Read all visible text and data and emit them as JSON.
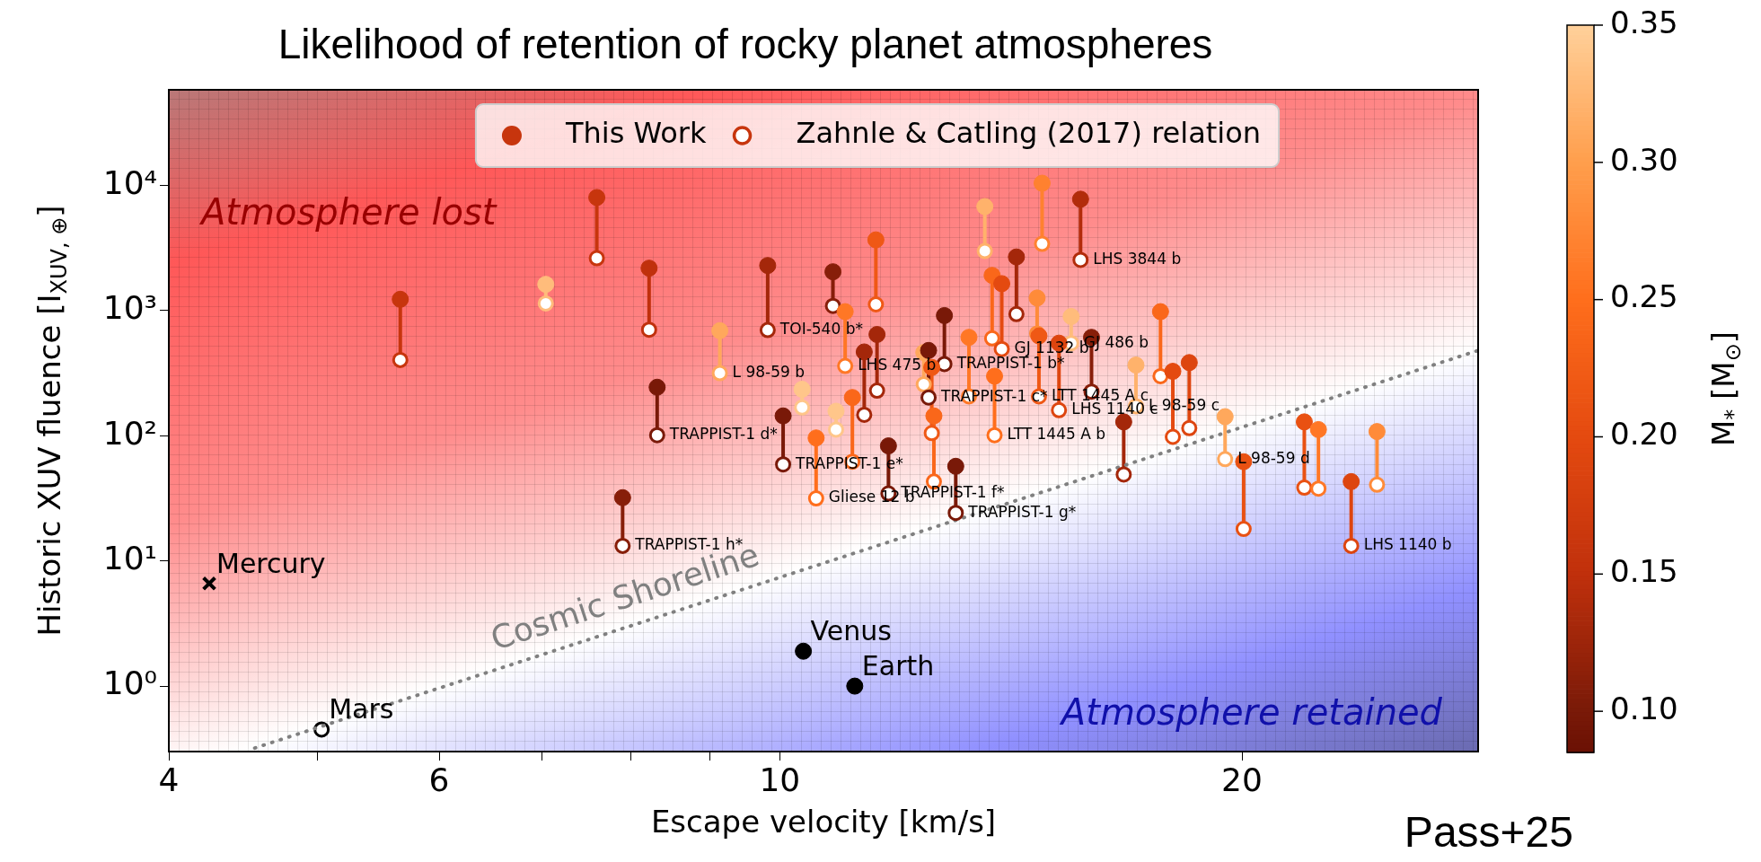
{
  "chart_data": {
    "type": "scatter",
    "title": "Likelihood of retention of rocky planet atmospheres",
    "xlabel": "Escape velocity [km/s]",
    "ylabel": "Historic XUV fluence [I$_{XUV, ⊕}$]",
    "clabel": "M$_{*}$ [M$_{⊙}$]",
    "x": [
      5.66,
      7.04,
      7.6,
      7.9,
      8.22,
      8.32,
      9.14,
      9.82,
      10.05,
      10.34,
      10.56,
      10.83,
      10.88,
      11.03,
      11.15,
      11.35,
      11.55,
      11.57,
      11.77,
      12.41,
      12.5,
      12.56,
      12.6,
      12.8,
      13.02,
      13.28,
      13.6,
      13.75,
      13.8,
      13.95,
      14.26,
      14.71,
      14.75,
      14.82,
      15.2,
      15.48,
      15.7,
      15.96,
      16.75,
      17.06,
      17.7,
      18.03,
      18.48,
      19.5,
      20.05,
      21.96,
      22.43,
      23.56,
      24.49
    ],
    "series": [
      {
        "name": "This Work",
        "marker": "circle",
        "cvalues": [
          0.16,
          0.33,
          0.16,
          0.11,
          0.15,
          0.1,
          0.31,
          0.13,
          0.1,
          0.34,
          0.25,
          0.11,
          0.34,
          0.26,
          0.24,
          0.13,
          0.22,
          0.13,
          0.1,
          0.31,
          0.1,
          0.22,
          0.24,
          0.1,
          0.1,
          0.26,
          0.32,
          0.24,
          0.25,
          0.2,
          0.13,
          0.28,
          0.22,
          0.27,
          0.19,
          0.33,
          0.14,
          0.11,
          0.13,
          0.32,
          0.24,
          0.2,
          0.19,
          0.31,
          0.21,
          0.21,
          0.26,
          0.19,
          0.28
        ],
        "values": [
          1230,
          1620,
          8000,
          32,
          2180,
          244,
          690,
          2290,
          144,
          235,
          96,
          2040,
          157,
          980,
          202,
          467,
          3670,
          644,
          83,
          462,
          480,
          351,
          144,
          912,
          57,
          611,
          6770,
          1910,
          299,
          1640,
          2680,
          1260,
          627,
          10400,
          549,
          896,
          7750,
          611,
          129,
          367,
          980,
          327,
          384,
          142,
          62,
          129,
          112,
          43,
          108
        ],
        "colors": [
          "#c7350d",
          "#ffbc7b",
          "#c7350d",
          "#871e09",
          "#c0300c",
          "#791908",
          "#ffa85c",
          "#a4270a",
          "#791908",
          "#ffc68a",
          "#ff6e1c",
          "#871e09",
          "#ffc68a",
          "#ff7725",
          "#fa671a",
          "#a4270a",
          "#ef5815",
          "#a4270a",
          "#791908",
          "#ffa85c",
          "#791908",
          "#ef5815",
          "#fa671a",
          "#791908",
          "#791908",
          "#ff7725",
          "#ffb26b",
          "#fa671a",
          "#ff6e1c",
          "#e44a10",
          "#a4270a",
          "#ff8b39",
          "#ef5815",
          "#ff812f",
          "#dd450f",
          "#ffbc7b",
          "#b22c0b",
          "#871e09",
          "#a4270a",
          "#ffb26b",
          "#fa671a",
          "#e44a10",
          "#dd450f",
          "#ffa85c",
          "#e95112",
          "#e95112",
          "#ff7725",
          "#dd450f",
          "#ff8b39"
        ]
      },
      {
        "name": "Zahnle & Catling (2017) relation",
        "marker": "circle",
        "color": "#ffffff",
        "values": [
          403,
          1140,
          2620,
          13.2,
          703,
          101,
          316,
          698,
          59,
          168,
          31.6,
          1090,
          112,
          361,
          62,
          147,
          1120,
          229,
          34.6,
          257,
          202,
          105,
          43,
          374,
          24.2,
          206,
          2990,
          600,
          101,
          493,
          936,
          655,
          206,
          3410,
          160,
          549,
          2540,
          225,
          49,
          172,
          299,
          98,
          115,
          65,
          18,
          38.5,
          37.8,
          13.2,
          40.6
        ]
      },
      {
        "type": "line",
        "name": "Cosmic Shoreline",
        "marker": "none",
        "x": [
          4.55,
          28.5
        ],
        "values": [
          0.32,
          480
        ],
        "color": "#808080",
        "line_style": "dotted"
      },
      {
        "name": "Mercury",
        "x": [
          4.25
        ],
        "values": [
          6.6
        ],
        "color": "#000000",
        "marker": "cross"
      },
      {
        "name": "Venus",
        "marker": "circle",
        "x": [
          10.36
        ],
        "values": [
          1.9
        ],
        "color": "#000000"
      },
      {
        "name": "Earth",
        "marker": "circle",
        "x": [
          11.19
        ],
        "values": [
          1
        ],
        "color": "#000000"
      },
      {
        "name": "Mars",
        "marker": "circle",
        "x": [
          5.03
        ],
        "values": [
          0.45
        ],
        "color": "#ffffff"
      },
      {
        "type": "line",
        "marker": "none",
        "x": [
          5.66,
          5.66
        ],
        "values": [
          403,
          1230
        ],
        "color": "#c7350d"
      },
      {
        "type": "line",
        "marker": "none",
        "x": [
          7.04,
          7.04
        ],
        "values": [
          1140,
          1620
        ],
        "color": "#ffbc7b"
      },
      {
        "type": "line",
        "marker": "none",
        "x": [
          7.6,
          7.6
        ],
        "values": [
          2620,
          8000
        ],
        "color": "#c7350d"
      },
      {
        "type": "line",
        "marker": "none",
        "x": [
          7.9,
          7.9
        ],
        "values": [
          13.2,
          32
        ],
        "color": "#871e09"
      },
      {
        "type": "line",
        "marker": "none",
        "x": [
          8.22,
          8.22
        ],
        "values": [
          703,
          2180
        ],
        "color": "#c0300c"
      },
      {
        "type": "line",
        "marker": "none",
        "x": [
          8.32,
          8.32
        ],
        "values": [
          101,
          244
        ],
        "color": "#791908"
      },
      {
        "type": "line",
        "marker": "none",
        "x": [
          9.14,
          9.14
        ],
        "values": [
          316,
          690
        ],
        "color": "#ffa85c"
      },
      {
        "type": "line",
        "marker": "none",
        "x": [
          9.82,
          9.82
        ],
        "values": [
          698,
          2290
        ],
        "color": "#a4270a"
      },
      {
        "type": "line",
        "marker": "none",
        "x": [
          10.05,
          10.05
        ],
        "values": [
          59,
          144
        ],
        "color": "#791908"
      },
      {
        "type": "line",
        "marker": "none",
        "x": [
          10.34,
          10.34
        ],
        "values": [
          168,
          235
        ],
        "color": "#ffc68a"
      },
      {
        "type": "line",
        "marker": "none",
        "x": [
          10.56,
          10.56
        ],
        "values": [
          31.6,
          96
        ],
        "color": "#ff6e1c"
      },
      {
        "type": "line",
        "marker": "none",
        "x": [
          10.83,
          10.83
        ],
        "values": [
          1090,
          2040
        ],
        "color": "#871e09"
      },
      {
        "type": "line",
        "marker": "none",
        "x": [
          10.88,
          10.88
        ],
        "values": [
          112,
          157
        ],
        "color": "#ffc68a"
      },
      {
        "type": "line",
        "marker": "none",
        "x": [
          11.03,
          11.03
        ],
        "values": [
          361,
          980
        ],
        "color": "#ff7725"
      },
      {
        "type": "line",
        "marker": "none",
        "x": [
          11.15,
          11.15
        ],
        "values": [
          62,
          202
        ],
        "color": "#fa671a"
      },
      {
        "type": "line",
        "marker": "none",
        "x": [
          11.35,
          11.35
        ],
        "values": [
          147,
          467
        ],
        "color": "#a4270a"
      },
      {
        "type": "line",
        "marker": "none",
        "x": [
          11.55,
          11.55
        ],
        "values": [
          1120,
          3670
        ],
        "color": "#ef5815"
      },
      {
        "type": "line",
        "marker": "none",
        "x": [
          11.57,
          11.57
        ],
        "values": [
          229,
          644
        ],
        "color": "#a4270a"
      },
      {
        "type": "line",
        "marker": "none",
        "x": [
          11.77,
          11.77
        ],
        "values": [
          34.6,
          83
        ],
        "color": "#791908"
      },
      {
        "type": "line",
        "marker": "none",
        "x": [
          12.41,
          12.41
        ],
        "values": [
          257,
          462
        ],
        "color": "#ffa85c"
      },
      {
        "type": "line",
        "marker": "none",
        "x": [
          12.5,
          12.5
        ],
        "values": [
          202,
          480
        ],
        "color": "#791908"
      },
      {
        "type": "line",
        "marker": "none",
        "x": [
          12.56,
          12.56
        ],
        "values": [
          105,
          351
        ],
        "color": "#ef5815"
      },
      {
        "type": "line",
        "marker": "none",
        "x": [
          12.6,
          12.6
        ],
        "values": [
          43,
          144
        ],
        "color": "#fa671a"
      },
      {
        "type": "line",
        "marker": "none",
        "x": [
          12.8,
          12.8
        ],
        "values": [
          374,
          912
        ],
        "color": "#791908"
      },
      {
        "type": "line",
        "marker": "none",
        "x": [
          13.02,
          13.02
        ],
        "values": [
          24.2,
          57
        ],
        "color": "#791908"
      },
      {
        "type": "line",
        "marker": "none",
        "x": [
          13.28,
          13.28
        ],
        "values": [
          206,
          611
        ],
        "color": "#ff7725"
      },
      {
        "type": "line",
        "marker": "none",
        "x": [
          13.6,
          13.6
        ],
        "values": [
          2990,
          6770
        ],
        "color": "#ffb26b"
      },
      {
        "type": "line",
        "marker": "none",
        "x": [
          13.75,
          13.75
        ],
        "values": [
          600,
          1910
        ],
        "color": "#fa671a"
      },
      {
        "type": "line",
        "marker": "none",
        "x": [
          13.8,
          13.8
        ],
        "values": [
          101,
          299
        ],
        "color": "#ff6e1c"
      },
      {
        "type": "line",
        "marker": "none",
        "x": [
          13.95,
          13.95
        ],
        "values": [
          493,
          1640
        ],
        "color": "#e44a10"
      },
      {
        "type": "line",
        "marker": "none",
        "x": [
          14.26,
          14.26
        ],
        "values": [
          936,
          2680
        ],
        "color": "#a4270a"
      },
      {
        "type": "line",
        "marker": "none",
        "x": [
          14.71,
          14.71
        ],
        "values": [
          655,
          1260
        ],
        "color": "#ff8b39"
      },
      {
        "type": "line",
        "marker": "none",
        "x": [
          14.75,
          14.75
        ],
        "values": [
          206,
          627
        ],
        "color": "#ef5815"
      },
      {
        "type": "line",
        "marker": "none",
        "x": [
          14.82,
          14.82
        ],
        "values": [
          3410,
          10400
        ],
        "color": "#ff812f"
      },
      {
        "type": "line",
        "marker": "none",
        "x": [
          15.2,
          15.2
        ],
        "values": [
          160,
          549
        ],
        "color": "#dd450f"
      },
      {
        "type": "line",
        "marker": "none",
        "x": [
          15.48,
          15.48
        ],
        "values": [
          549,
          896
        ],
        "color": "#ffbc7b"
      },
      {
        "type": "line",
        "marker": "none",
        "x": [
          15.7,
          15.7
        ],
        "values": [
          2540,
          7750
        ],
        "color": "#b22c0b"
      },
      {
        "type": "line",
        "marker": "none",
        "x": [
          15.96,
          15.96
        ],
        "values": [
          225,
          611
        ],
        "color": "#871e09"
      },
      {
        "type": "line",
        "marker": "none",
        "x": [
          16.75,
          16.75
        ],
        "values": [
          49,
          129
        ],
        "color": "#a4270a"
      },
      {
        "type": "line",
        "marker": "none",
        "x": [
          17.06,
          17.06
        ],
        "values": [
          172,
          367
        ],
        "color": "#ffb26b"
      },
      {
        "type": "line",
        "marker": "none",
        "x": [
          17.7,
          17.7
        ],
        "values": [
          299,
          980
        ],
        "color": "#fa671a"
      },
      {
        "type": "line",
        "marker": "none",
        "x": [
          18.03,
          18.03
        ],
        "values": [
          98,
          327
        ],
        "color": "#e44a10"
      },
      {
        "type": "line",
        "marker": "none",
        "x": [
          18.48,
          18.48
        ],
        "values": [
          115,
          384
        ],
        "color": "#dd450f"
      },
      {
        "type": "line",
        "marker": "none",
        "x": [
          19.5,
          19.5
        ],
        "values": [
          65,
          142
        ],
        "color": "#ffa85c"
      },
      {
        "type": "line",
        "marker": "none",
        "x": [
          20.05,
          20.05
        ],
        "values": [
          18,
          62
        ],
        "color": "#e95112"
      },
      {
        "type": "line",
        "marker": "none",
        "x": [
          21.96,
          21.96
        ],
        "values": [
          38.5,
          129
        ],
        "color": "#e95112"
      },
      {
        "type": "line",
        "marker": "none",
        "x": [
          22.43,
          22.43
        ],
        "values": [
          37.8,
          112
        ],
        "color": "#ff7725"
      },
      {
        "type": "line",
        "marker": "none",
        "x": [
          23.56,
          23.56
        ],
        "values": [
          13.2,
          43
        ],
        "color": "#dd450f"
      },
      {
        "type": "line",
        "marker": "none",
        "x": [
          24.49,
          24.49
        ],
        "values": [
          40.6,
          108
        ],
        "color": "#ff8b39"
      }
    ],
    "xlim": [
      4,
      28.5
    ],
    "xticks": [
      4,
      {
        "value": 5,
        "label": null
      },
      6,
      {
        "value": 7,
        "label": null
      },
      {
        "value": 8,
        "label": null
      },
      {
        "value": 9,
        "label": null
      },
      10,
      20
    ],
    "ylim": [
      0.316,
      58000
    ],
    "yticks": [
      {
        "value": 1,
        "label": "10⁰"
      },
      {
        "value": 10,
        "label": "10¹"
      },
      {
        "value": 100,
        "label": "10²"
      },
      {
        "value": 1000,
        "label": "10³"
      },
      {
        "value": 10000,
        "label": "10⁴"
      }
    ],
    "clim": [
      0.085,
      0.35
    ],
    "cticks": [
      {
        "value": 0.1,
        "label": "0.10"
      },
      {
        "value": 0.15,
        "label": "0.15"
      },
      {
        "value": 0.2,
        "label": "0.20"
      },
      {
        "value": 0.25,
        "label": "0.25"
      },
      {
        "value": 0.3,
        "label": "0.30"
      },
      {
        "value": 0.35,
        "label": "0.35"
      }
    ],
    "log": "xy",
    "legend": "top",
    "annotations": [
      "Atmosphere lost",
      "Atmosphere retained",
      "Pass+25",
      {
        "text": "L 98-59 b",
        "x": 9.14,
        "y": 316
      },
      {
        "text": "TRAPPIST-1 d*",
        "x": 8.32,
        "y": 101
      },
      {
        "text": "TRAPPIST-1 h*",
        "x": 7.9,
        "y": 13.2
      },
      {
        "text": "TOI-540 b*",
        "x": 9.82,
        "y": 698
      },
      {
        "text": "TRAPPIST-1 e*",
        "x": 10.05,
        "y": 59
      },
      {
        "text": "Gliese 12 b",
        "x": 10.56,
        "y": 31.6
      },
      {
        "text": "LHS 475 b",
        "x": 11.03,
        "y": 361
      },
      {
        "text": "TRAPPIST-1 f*",
        "x": 11.77,
        "y": 34.6
      },
      {
        "text": "TRAPPIST-1 c*",
        "x": 12.5,
        "y": 202
      },
      {
        "text": "TRAPPIST-1 b*",
        "x": 12.8,
        "y": 374
      },
      {
        "text": "TRAPPIST-1 g*",
        "x": 13.02,
        "y": 24.2
      },
      {
        "text": "LTT 1445 A b",
        "x": 13.8,
        "y": 101
      },
      {
        "text": "GJ 1132 b",
        "x": 13.95,
        "y": 493
      },
      {
        "text": "LTT 1445 A c",
        "x": 14.75,
        "y": 206
      },
      {
        "text": "LHS 1140 c",
        "x": 15.2,
        "y": 160
      },
      {
        "text": "LHS 3844 b",
        "x": 15.7,
        "y": 2540
      },
      {
        "text": "GJ 486 b",
        "x": 15.48,
        "y": 549
      },
      {
        "text": "L 98-59 c",
        "x": 17.06,
        "y": 172
      },
      {
        "text": "L 98-59 d",
        "x": 19.5,
        "y": 65
      },
      {
        "text": "LHS 1140 b",
        "x": 23.56,
        "y": 13.2
      }
    ]
  }
}
